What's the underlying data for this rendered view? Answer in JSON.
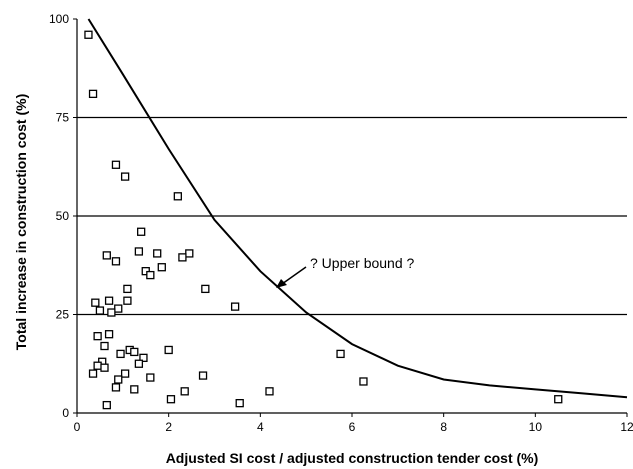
{
  "chart_data": {
    "type": "scatter",
    "title": "",
    "xlabel": "Adjusted SI cost / adjusted construction tender cost (%)",
    "ylabel": "Total increase in construction cost (%)",
    "xlim": [
      0,
      12
    ],
    "ylim": [
      0,
      100
    ],
    "x_ticks": [
      0,
      2,
      4,
      6,
      8,
      10,
      12
    ],
    "y_ticks": [
      0,
      25,
      50,
      75,
      100
    ],
    "grid": "horizontal lines at y = 25, 50, 75",
    "legend": "none",
    "colors": {
      "marker": "#000000",
      "curve": "#000000",
      "background": "#ffffff"
    },
    "series": [
      {
        "points": [
          [
            0.25,
            96
          ],
          [
            0.35,
            81
          ],
          [
            0.85,
            63
          ],
          [
            1.05,
            60
          ],
          [
            2.2,
            55
          ],
          [
            1.4,
            46
          ],
          [
            1.35,
            41
          ],
          [
            1.75,
            40.5
          ],
          [
            2.45,
            40.5
          ],
          [
            2.3,
            39.5
          ],
          [
            0.65,
            40
          ],
          [
            0.85,
            38.5
          ],
          [
            1.85,
            37
          ],
          [
            1.5,
            36
          ],
          [
            1.6,
            35
          ],
          [
            1.1,
            31.5
          ],
          [
            2.8,
            31.5
          ],
          [
            0.4,
            28
          ],
          [
            0.7,
            28.5
          ],
          [
            1.1,
            28.5
          ],
          [
            0.5,
            26
          ],
          [
            0.9,
            26.5
          ],
          [
            0.75,
            25.5
          ],
          [
            3.45,
            27
          ],
          [
            0.45,
            19.5
          ],
          [
            0.7,
            20
          ],
          [
            0.6,
            17
          ],
          [
            1.15,
            16
          ],
          [
            1.25,
            15.5
          ],
          [
            2.0,
            16
          ],
          [
            0.95,
            15
          ],
          [
            1.45,
            14
          ],
          [
            1.35,
            12.5
          ],
          [
            0.55,
            13
          ],
          [
            0.45,
            12
          ],
          [
            0.6,
            11.5
          ],
          [
            0.35,
            10
          ],
          [
            1.05,
            10
          ],
          [
            0.9,
            8.5
          ],
          [
            1.6,
            9
          ],
          [
            2.75,
            9.5
          ],
          [
            0.85,
            6.5
          ],
          [
            1.25,
            6
          ],
          [
            2.35,
            5.5
          ],
          [
            4.2,
            5.5
          ],
          [
            2.05,
            3.5
          ],
          [
            0.65,
            2
          ],
          [
            3.55,
            2.5
          ],
          [
            5.75,
            15
          ],
          [
            6.25,
            8
          ],
          [
            10.5,
            3.5
          ]
        ]
      }
    ],
    "curve_label": "? Upper bound ?"
  }
}
